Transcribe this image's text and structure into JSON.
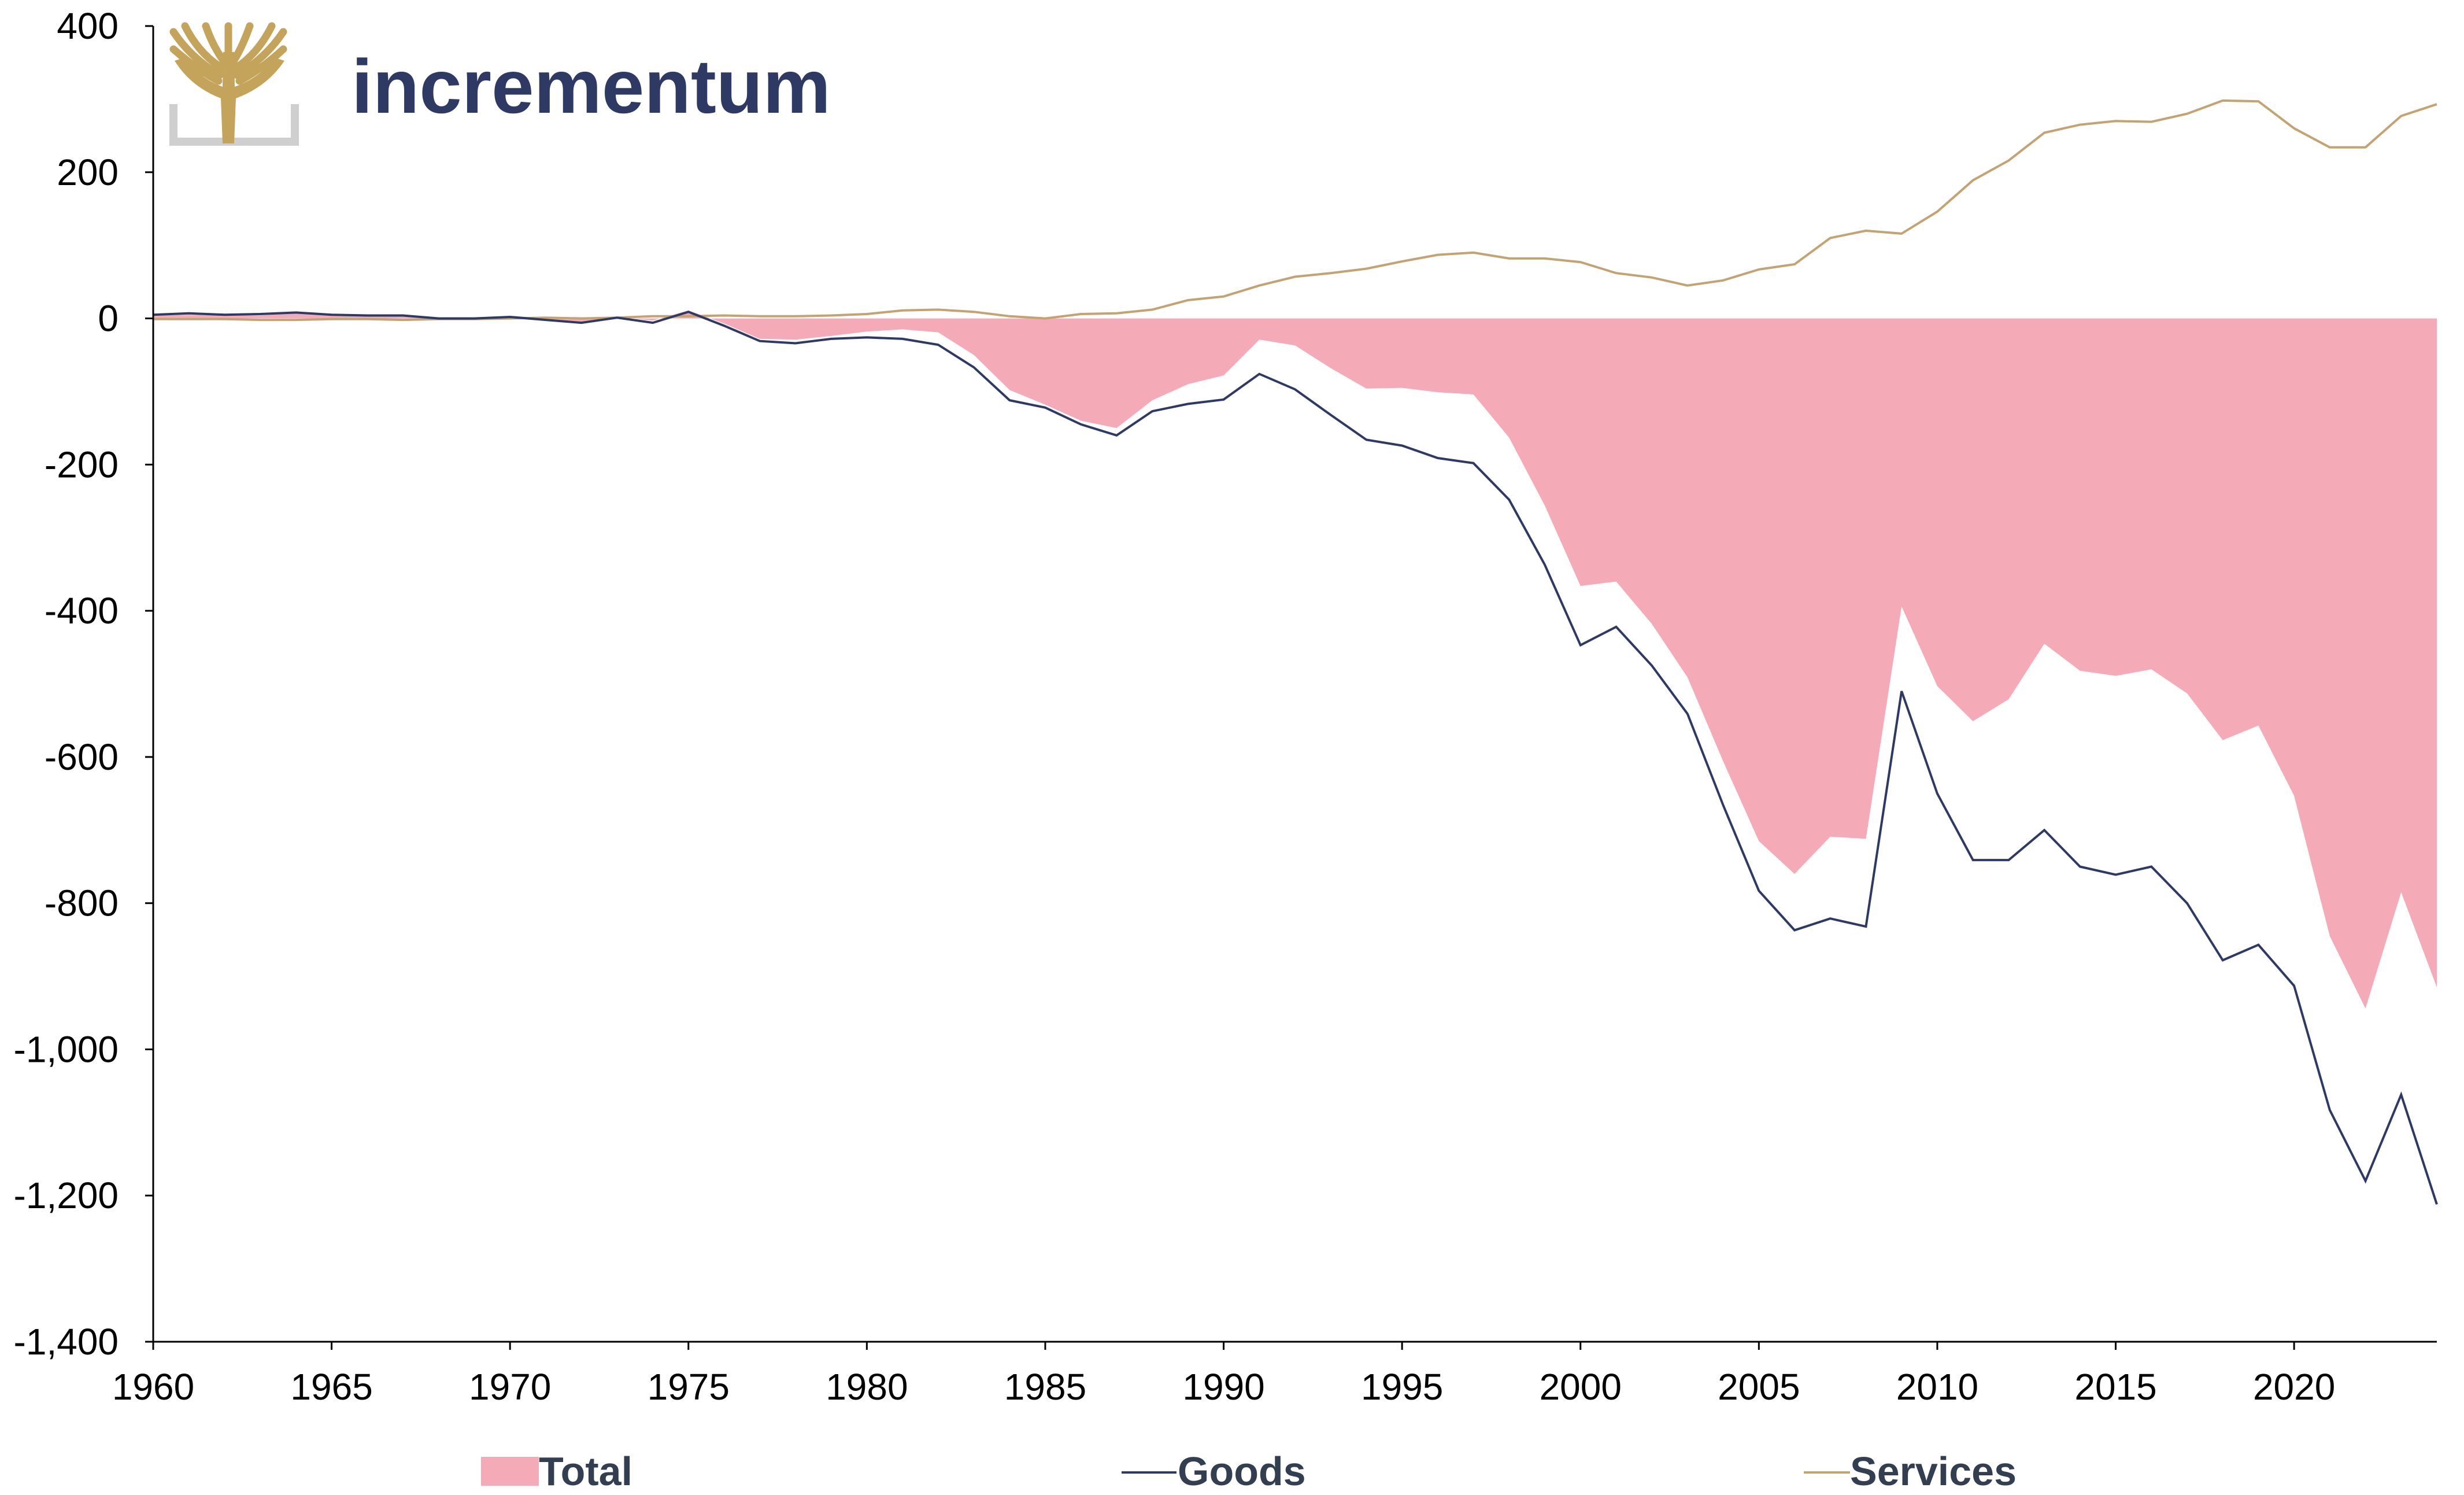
{
  "logo": {
    "text": "incrementum",
    "tree_color": "#c4a35a",
    "frame_color": "#cfcfcf",
    "text_color": "#2e3a63"
  },
  "chart_data": {
    "type": "area",
    "title": "",
    "xlabel": "",
    "ylabel": "",
    "xlim": [
      1960,
      2024
    ],
    "ylim": [
      -1400,
      400
    ],
    "grid": false,
    "legend_position": "bottom",
    "x_ticks": [
      "1960",
      "1965",
      "1970",
      "1975",
      "1980",
      "1985",
      "1990",
      "1995",
      "2000",
      "2005",
      "2010",
      "2015",
      "2020"
    ],
    "y_ticks": [
      "400",
      "200",
      "0",
      "-200",
      "-400",
      "-600",
      "-800",
      "-1,000",
      "-1,200",
      "-1,400"
    ],
    "x": [
      1960,
      1961,
      1962,
      1963,
      1964,
      1965,
      1966,
      1967,
      1968,
      1969,
      1970,
      1971,
      1972,
      1973,
      1974,
      1975,
      1976,
      1977,
      1978,
      1979,
      1980,
      1981,
      1982,
      1983,
      1984,
      1985,
      1986,
      1987,
      1988,
      1989,
      1990,
      1991,
      1992,
      1993,
      1994,
      1995,
      1996,
      1997,
      1998,
      1999,
      2000,
      2001,
      2002,
      2003,
      2004,
      2005,
      2006,
      2007,
      2008,
      2009,
      2010,
      2011,
      2012,
      2013,
      2014,
      2015,
      2016,
      2017,
      2018,
      2019,
      2020,
      2021,
      2022,
      2023,
      2024
    ],
    "series": [
      {
        "name": "Total",
        "kind": "area",
        "color": "#f4abb7",
        "values": [
          4,
          5,
          4,
          4,
          7,
          5,
          4,
          4,
          0,
          0,
          2,
          -1,
          -6,
          2,
          -3,
          11,
          -7,
          -28,
          -29,
          -24,
          -18,
          -15,
          -19,
          -50,
          -98,
          -118,
          -140,
          -150,
          -112,
          -90,
          -78,
          -29,
          -37,
          -68,
          -96,
          -95,
          -101,
          -104,
          -163,
          -256,
          -366,
          -360,
          -418,
          -491,
          -606,
          -715,
          -760,
          -709,
          -712,
          -394,
          -503,
          -551,
          -521,
          -445,
          -482,
          -489,
          -480,
          -513,
          -577,
          -557,
          -653,
          -845,
          -944,
          -785,
          -915
        ]
      },
      {
        "name": "Goods",
        "kind": "line",
        "color": "#2e3a63",
        "values": [
          5,
          7,
          5,
          6,
          8,
          5,
          4,
          4,
          0,
          0,
          2,
          -2,
          -6,
          1,
          -6,
          9,
          -10,
          -31,
          -34,
          -28,
          -26,
          -28,
          -36,
          -67,
          -112,
          -122,
          -145,
          -160,
          -127,
          -117,
          -111,
          -76,
          -97,
          -132,
          -166,
          -174,
          -191,
          -198,
          -248,
          -337,
          -447,
          -422,
          -475,
          -541,
          -666,
          -783,
          -837,
          -821,
          -832,
          -510,
          -650,
          -741,
          -741,
          -700,
          -750,
          -761,
          -750,
          -800,
          -878,
          -857,
          -913,
          -1083,
          -1180,
          -1062,
          -1212
        ]
      },
      {
        "name": "Services",
        "kind": "line",
        "color": "#c4a372",
        "values": [
          -1,
          -1,
          -1,
          -2,
          -2,
          -1,
          -1,
          -2,
          -1,
          -1,
          0,
          1,
          0,
          1,
          3,
          3,
          4,
          3,
          3,
          4,
          6,
          11,
          12,
          9,
          3,
          0,
          6,
          7,
          12,
          25,
          30,
          45,
          57,
          62,
          68,
          78,
          87,
          90,
          82,
          82,
          77,
          62,
          56,
          45,
          52,
          67,
          74,
          110,
          120,
          116,
          146,
          189,
          216,
          254,
          265,
          270,
          269,
          280,
          298,
          297,
          260,
          234,
          234,
          277,
          293
        ]
      }
    ]
  }
}
